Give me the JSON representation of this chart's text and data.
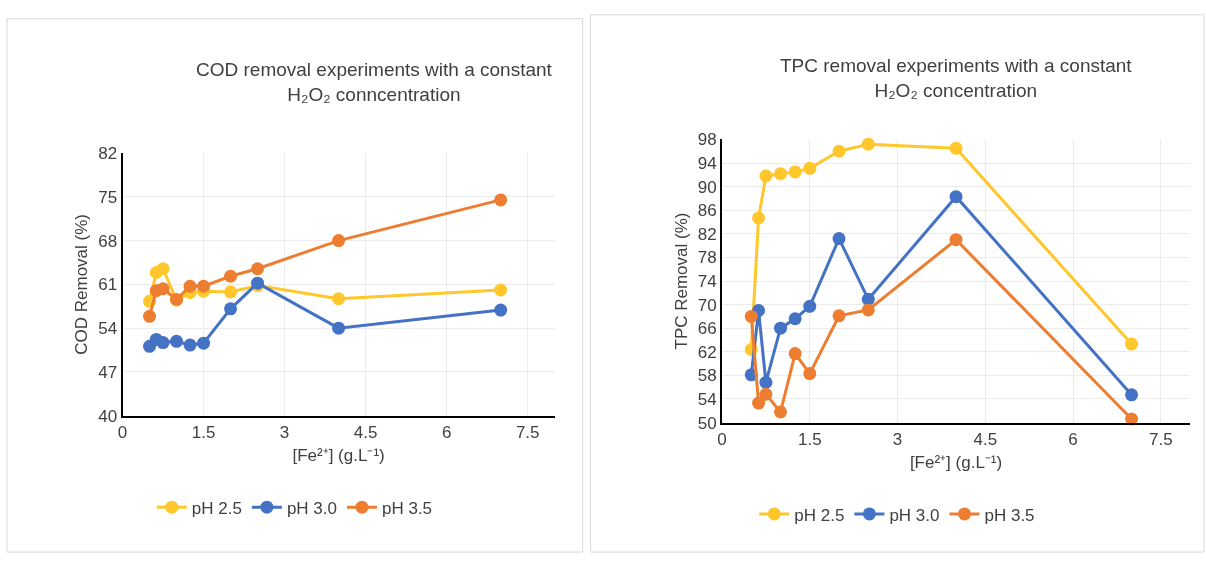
{
  "chart_data": [
    {
      "type": "line",
      "title": "COD removal experiments with a constant H₂O₂ conncentration",
      "xlabel": "[Fe²⁺] (g.L⁻¹)",
      "ylabel": "COD Removal (%)",
      "x": [
        0.5,
        0.625,
        0.75,
        1.0,
        1.25,
        1.5,
        2.0,
        2.5,
        4.0,
        7.0
      ],
      "series": [
        {
          "name": "pH 2.5",
          "color": "#ffc72c",
          "values": [
            58.3,
            62.9,
            63.5,
            58.5,
            59.7,
            59.9,
            59.8,
            60.8,
            58.7,
            60.1
          ]
        },
        {
          "name": "pH 3.0",
          "color": "#4472c4",
          "values": [
            51.1,
            52.2,
            51.7,
            51.9,
            51.3,
            51.6,
            57.1,
            61.2,
            54.0,
            56.9
          ]
        },
        {
          "name": "pH 3.5",
          "color": "#ed7d31",
          "values": [
            55.9,
            60.0,
            60.3,
            58.6,
            60.7,
            60.7,
            62.3,
            63.5,
            68.0,
            74.5
          ]
        }
      ],
      "xlim": [
        0,
        8
      ],
      "xticks": [
        0,
        1.5,
        3,
        4.5,
        6,
        7.5
      ],
      "ylim": [
        40,
        82
      ],
      "yticks": [
        40,
        47,
        54,
        61,
        68,
        75,
        82
      ],
      "grid": true,
      "legend": "bottom",
      "marker": "circle",
      "line_style": "solid"
    },
    {
      "type": "line",
      "title": "TPC removal experiments with a constant H₂O₂ concentration",
      "xlabel": "[Fe²⁺] (g.L⁻¹)",
      "ylabel": "TPC Removal (%)",
      "x": [
        0.5,
        0.625,
        0.75,
        1.0,
        1.25,
        1.5,
        2.0,
        2.5,
        4.0,
        7.0
      ],
      "series": [
        {
          "name": "pH 2.5",
          "color": "#ffc72c",
          "values": [
            62.4,
            84.7,
            91.8,
            92.2,
            92.5,
            93.1,
            96.0,
            97.2,
            96.5,
            63.3
          ]
        },
        {
          "name": "pH 3.0",
          "color": "#4472c4",
          "values": [
            58.1,
            69.0,
            56.8,
            66.0,
            67.6,
            69.7,
            81.2,
            70.9,
            88.3,
            54.7
          ]
        },
        {
          "name": "pH 3.5",
          "color": "#ed7d31",
          "values": [
            68.0,
            53.3,
            54.8,
            51.8,
            61.7,
            58.3,
            68.1,
            69.1,
            81.0,
            50.6
          ]
        }
      ],
      "xlim": [
        0,
        8
      ],
      "xticks": [
        0,
        1.5,
        3,
        4.5,
        6,
        7.5
      ],
      "ylim": [
        50,
        98
      ],
      "yticks": [
        50,
        54,
        58,
        62,
        66,
        70,
        74,
        78,
        82,
        86,
        90,
        94,
        98
      ],
      "grid": true,
      "legend": "bottom",
      "marker": "circle",
      "line_style": "solid"
    }
  ]
}
